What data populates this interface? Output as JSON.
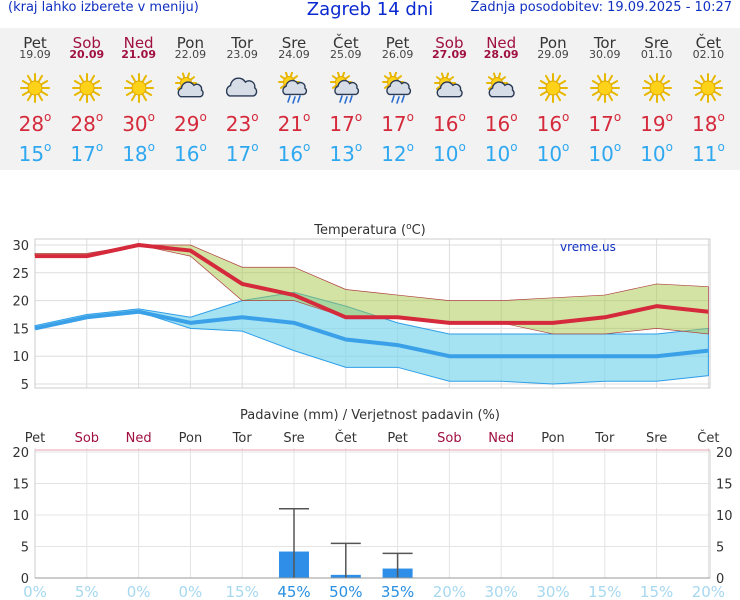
{
  "header": {
    "note": "(kraj lahko izberete v meniju)",
    "title": "Zagreb 14 dni",
    "updated": "Zadnja posodobitev: 19.09.2025 - 10:27"
  },
  "colors": {
    "max": "#d42a3c",
    "min": "#2fa8f0",
    "weekend": "#a01040",
    "rain_bar": "#2f8fe8",
    "prob_low": "#a6d8f0",
    "prob_high": "#2a8fe0"
  },
  "days": [
    {
      "name": "Pet",
      "date": "19.09",
      "weekend": false,
      "icon": "sun-icon",
      "max": "28",
      "min": "15"
    },
    {
      "name": "Sob",
      "date": "20.09",
      "weekend": true,
      "icon": "sun-icon",
      "max": "28",
      "min": "17"
    },
    {
      "name": "Ned",
      "date": "21.09",
      "weekend": true,
      "icon": "sun-icon",
      "max": "30",
      "min": "18"
    },
    {
      "name": "Pon",
      "date": "22.09",
      "weekend": false,
      "icon": "partly-cloudy-icon",
      "max": "29",
      "min": "16"
    },
    {
      "name": "Tor",
      "date": "23.09",
      "weekend": false,
      "icon": "cloud-icon",
      "max": "23",
      "min": "17"
    },
    {
      "name": "Sre",
      "date": "24.09",
      "weekend": false,
      "icon": "sun-rain-icon",
      "max": "21",
      "min": "16"
    },
    {
      "name": "Čet",
      "date": "25.09",
      "weekend": false,
      "icon": "sun-rain-icon",
      "max": "17",
      "min": "13"
    },
    {
      "name": "Pet",
      "date": "26.09",
      "weekend": false,
      "icon": "sun-rain-icon",
      "max": "17",
      "min": "12"
    },
    {
      "name": "Sob",
      "date": "27.09",
      "weekend": true,
      "icon": "partly-cloudy-icon",
      "max": "16",
      "min": "10"
    },
    {
      "name": "Ned",
      "date": "28.09",
      "weekend": true,
      "icon": "partly-cloudy-icon",
      "max": "16",
      "min": "10"
    },
    {
      "name": "Pon",
      "date": "29.09",
      "weekend": false,
      "icon": "sun-icon",
      "max": "16",
      "min": "10"
    },
    {
      "name": "Tor",
      "date": "30.09",
      "weekend": false,
      "icon": "sun-icon",
      "max": "17",
      "min": "10"
    },
    {
      "name": "Sre",
      "date": "01.10",
      "weekend": false,
      "icon": "sun-icon",
      "max": "19",
      "min": "10"
    },
    {
      "name": "Čet",
      "date": "02.10",
      "weekend": false,
      "icon": "sun-icon",
      "max": "18",
      "min": "11"
    }
  ],
  "chart_data": [
    {
      "type": "line",
      "title": "Temperatura (oC)",
      "watermark": "vreme.us",
      "ylim": [
        5,
        30
      ],
      "yticks": [
        5,
        10,
        15,
        20,
        25,
        30
      ],
      "grid": true,
      "series": [
        {
          "name": "max",
          "values": [
            28,
            28,
            30,
            29,
            23,
            21,
            17,
            17,
            16,
            16,
            16,
            17,
            19,
            18
          ]
        },
        {
          "name": "min",
          "values": [
            15,
            17,
            18,
            16,
            17,
            16,
            13,
            12,
            10,
            10,
            10,
            10,
            10,
            11
          ]
        }
      ],
      "max_band": {
        "low": [
          28,
          28,
          30,
          28,
          20,
          20,
          17,
          17,
          16,
          16,
          14,
          14,
          15,
          14
        ],
        "high": [
          28.5,
          28.5,
          30,
          30,
          26,
          26,
          22,
          21,
          20,
          20,
          20.5,
          21,
          23,
          22.5
        ]
      },
      "min_band": {
        "low": [
          15,
          17,
          18,
          15,
          14.5,
          11,
          8,
          8,
          5.5,
          5.5,
          5,
          5.5,
          5.5,
          6.5
        ],
        "high": [
          15.5,
          17.5,
          18.5,
          17,
          20,
          21.5,
          19,
          16,
          14,
          14,
          14,
          14,
          14,
          15
        ]
      }
    },
    {
      "type": "bar",
      "title": "Padavine (mm) / Verjetnost padavin (%)",
      "ylim": [
        0,
        20
      ],
      "yticks": [
        0,
        5,
        10,
        15,
        20
      ],
      "categories": [
        "Pet",
        "Sob",
        "Ned",
        "Pon",
        "Tor",
        "Sre",
        "Čet",
        "Pet",
        "Sob",
        "Ned",
        "Pon",
        "Tor",
        "Sre",
        "Čet"
      ],
      "values": [
        0,
        0,
        0,
        0,
        0,
        4.2,
        0.5,
        1.5,
        0,
        0,
        0,
        0,
        0,
        0
      ],
      "error_high": [
        0,
        0,
        0,
        0,
        0,
        11,
        5.5,
        3.9,
        0,
        0,
        0,
        0,
        0,
        0
      ],
      "probability": [
        "0%",
        "5%",
        "0%",
        "0%",
        "15%",
        "45%",
        "50%",
        "35%",
        "20%",
        "30%",
        "30%",
        "15%",
        "15%",
        "20%"
      ]
    }
  ]
}
